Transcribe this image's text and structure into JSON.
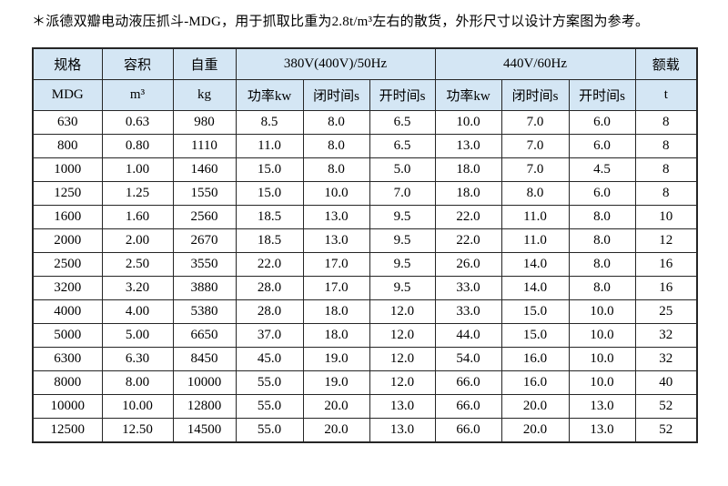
{
  "title": "＊派德双瓣电动液压抓斗-MDG，用于抓取比重为2.8t/m³左右的散货，外形尺寸以设计方案图为参考。",
  "colors": {
    "header_bg": "#d4e6f4",
    "border": "#262626",
    "text": "#000000"
  },
  "table": {
    "header": {
      "spec": "规格",
      "spec_sub": "MDG",
      "capacity": "容积",
      "capacity_sub": "m³",
      "weight": "自重",
      "weight_sub": "kg",
      "group_380": "380V(400V)/50Hz",
      "group_440": "440V/60Hz",
      "power": "功率kw",
      "close_time": "闭时间s",
      "open_time": "开时间s",
      "load": "额载",
      "load_sub": "t"
    },
    "rows": [
      [
        "630",
        "0.63",
        "980",
        "8.5",
        "8.0",
        "6.5",
        "10.0",
        "7.0",
        "6.0",
        "8"
      ],
      [
        "800",
        "0.80",
        "1110",
        "11.0",
        "8.0",
        "6.5",
        "13.0",
        "7.0",
        "6.0",
        "8"
      ],
      [
        "1000",
        "1.00",
        "1460",
        "15.0",
        "8.0",
        "5.0",
        "18.0",
        "7.0",
        "4.5",
        "8"
      ],
      [
        "1250",
        "1.25",
        "1550",
        "15.0",
        "10.0",
        "7.0",
        "18.0",
        "8.0",
        "6.0",
        "8"
      ],
      [
        "1600",
        "1.60",
        "2560",
        "18.5",
        "13.0",
        "9.5",
        "22.0",
        "11.0",
        "8.0",
        "10"
      ],
      [
        "2000",
        "2.00",
        "2670",
        "18.5",
        "13.0",
        "9.5",
        "22.0",
        "11.0",
        "8.0",
        "12"
      ],
      [
        "2500",
        "2.50",
        "3550",
        "22.0",
        "17.0",
        "9.5",
        "26.0",
        "14.0",
        "8.0",
        "16"
      ],
      [
        "3200",
        "3.20",
        "3880",
        "28.0",
        "17.0",
        "9.5",
        "33.0",
        "14.0",
        "8.0",
        "16"
      ],
      [
        "4000",
        "4.00",
        "5380",
        "28.0",
        "18.0",
        "12.0",
        "33.0",
        "15.0",
        "10.0",
        "25"
      ],
      [
        "5000",
        "5.00",
        "6650",
        "37.0",
        "18.0",
        "12.0",
        "44.0",
        "15.0",
        "10.0",
        "32"
      ],
      [
        "6300",
        "6.30",
        "8450",
        "45.0",
        "19.0",
        "12.0",
        "54.0",
        "16.0",
        "10.0",
        "32"
      ],
      [
        "8000",
        "8.00",
        "10000",
        "55.0",
        "19.0",
        "12.0",
        "66.0",
        "16.0",
        "10.0",
        "40"
      ],
      [
        "10000",
        "10.00",
        "12800",
        "55.0",
        "20.0",
        "13.0",
        "66.0",
        "20.0",
        "13.0",
        "52"
      ],
      [
        "12500",
        "12.50",
        "14500",
        "55.0",
        "20.0",
        "13.0",
        "66.0",
        "20.0",
        "13.0",
        "52"
      ]
    ]
  }
}
